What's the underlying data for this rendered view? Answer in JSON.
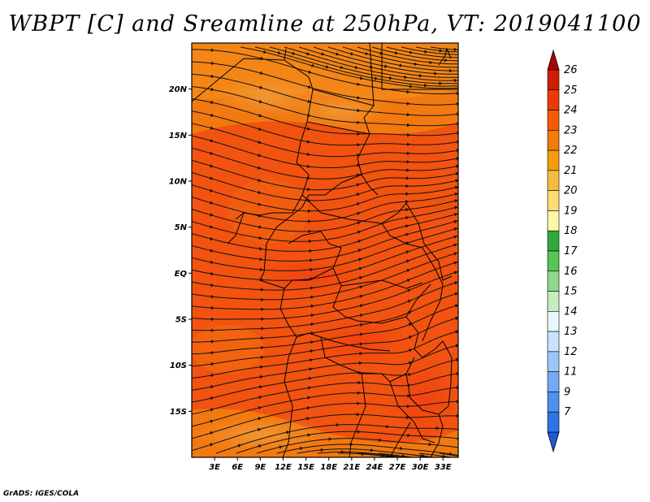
{
  "title": "WBPT [C] and Sreamline at 250hPa, VT: 2019041100",
  "credit": "GrADS: IGES/COLA",
  "map": {
    "lon_range": [
      0,
      35
    ],
    "lat_range": [
      -20,
      25
    ],
    "lon_ticks": [
      "3E",
      "6E",
      "9E",
      "12E",
      "15E",
      "18E",
      "21E",
      "24E",
      "27E",
      "30E",
      "33E"
    ],
    "lat_ticks": [
      "20N",
      "15N",
      "10N",
      "5N",
      "EQ",
      "5S",
      "10S",
      "15S"
    ]
  },
  "colorbar": {
    "labels": [
      "7",
      "9",
      "11",
      "12",
      "13",
      "14",
      "15",
      "16",
      "17",
      "18",
      "19",
      "20",
      "21",
      "22",
      "23",
      "24",
      "25",
      "26"
    ],
    "colors": [
      "#1e5ad6",
      "#2d74e6",
      "#4f8fee",
      "#74aaf5",
      "#9cc6fa",
      "#c6e2fc",
      "#e8f7fb",
      "#c6ecc0",
      "#8fd88a",
      "#58c454",
      "#31a83b",
      "#fff6a8",
      "#fcdc72",
      "#f6bb3e",
      "#f59c0c",
      "#f47b05",
      "#f45a05",
      "#ec3a05",
      "#d01e05",
      "#a80505"
    ]
  },
  "legend": {
    "shading_field": "WBPT [C]",
    "vector_field": "Sreamline"
  }
}
